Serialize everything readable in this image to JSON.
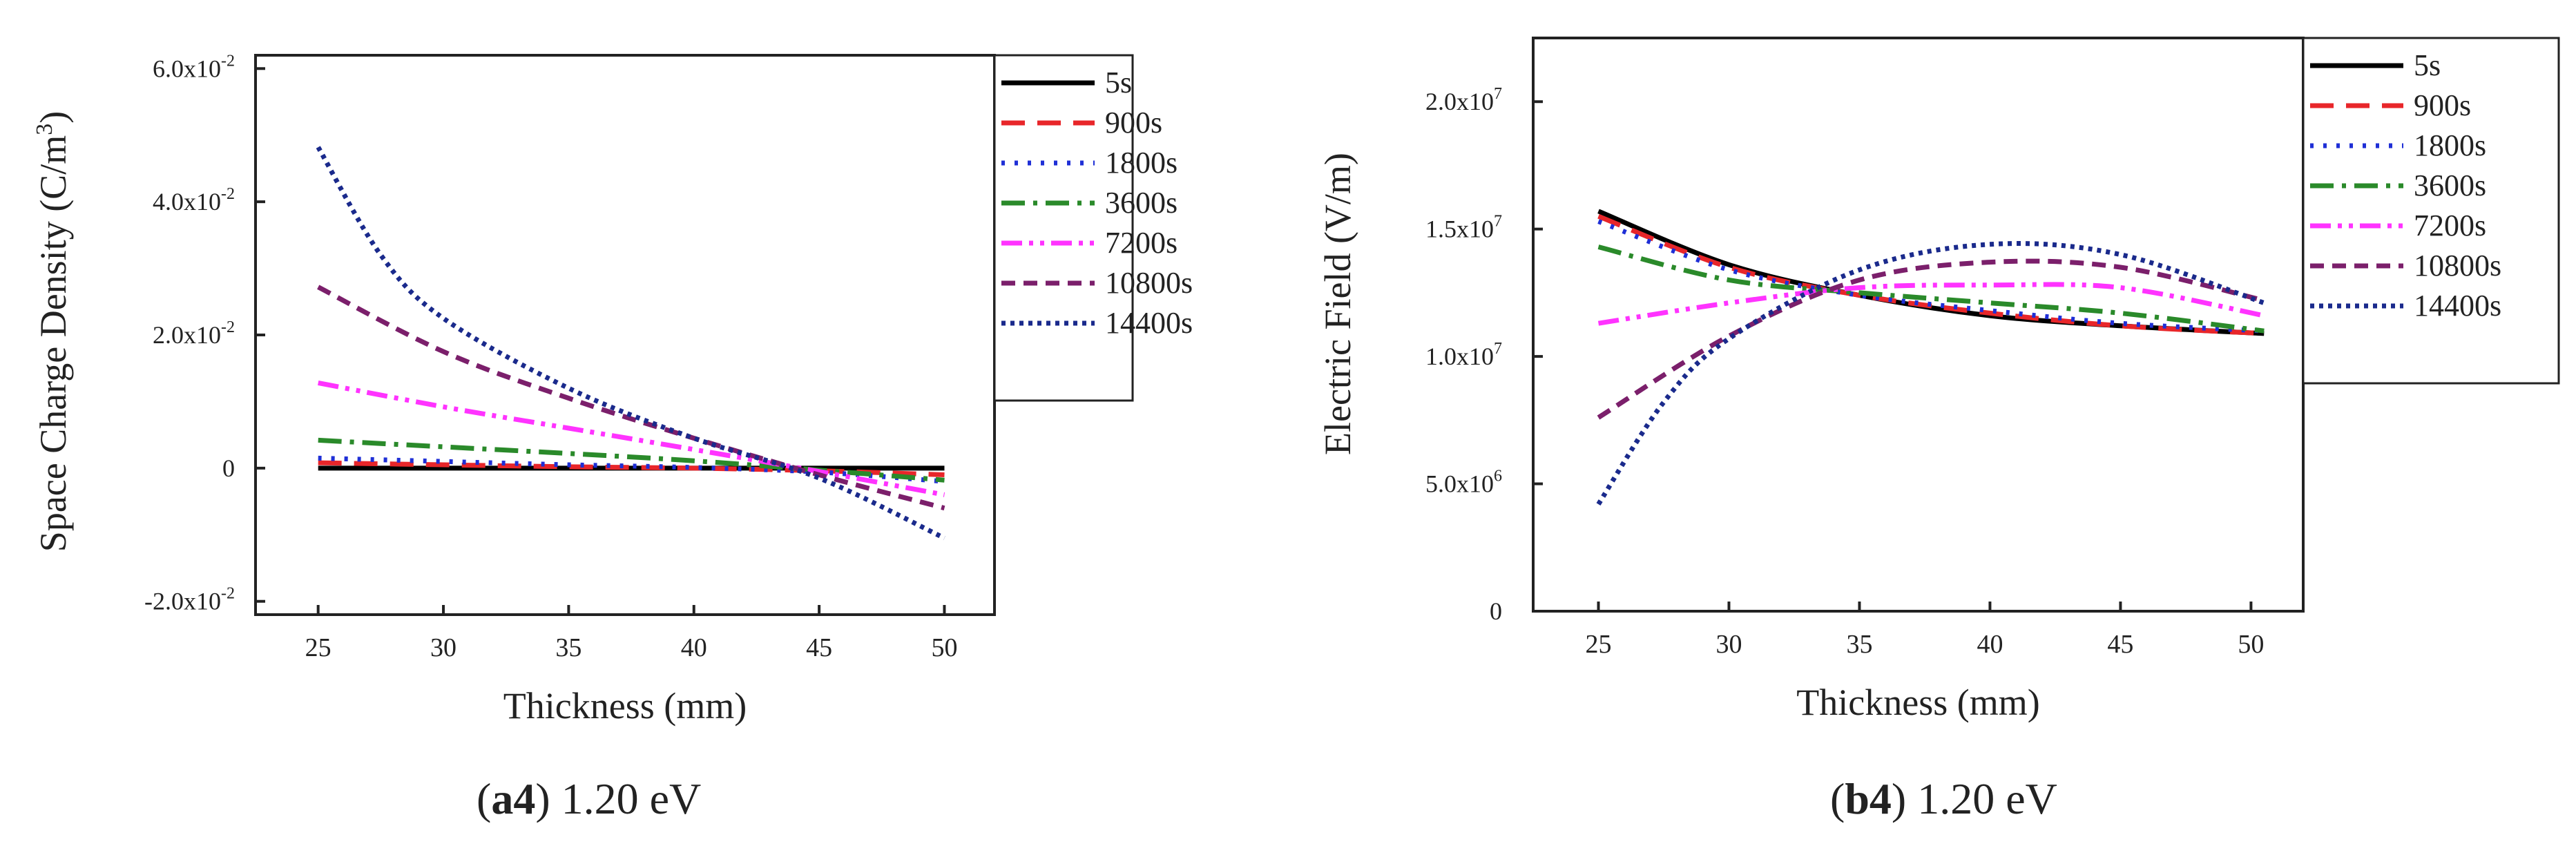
{
  "figure": {
    "captions": [
      {
        "label": "a4",
        "text": " 1.20 eV"
      },
      {
        "label": "b4",
        "text": " 1.20 eV"
      }
    ]
  },
  "colors": {
    "5s": "#000000",
    "900s": "#e8262a",
    "1800s": "#1f2fd6",
    "3600s": "#2a8a2a",
    "7200s": "#ff33ff",
    "10800s": "#7b1f6b",
    "14400s": "#1a2a8c"
  },
  "chart_data": [
    {
      "id": "a4",
      "type": "line",
      "title": "",
      "xlabel": "Thickness (mm)",
      "ylabel_main": "Space Charge Density (C/m",
      "ylabel_sup": "3",
      "ylabel_close": ")",
      "xlim": [
        22.5,
        52
      ],
      "ylim": [
        -0.022,
        0.062
      ],
      "xticks": [
        25,
        30,
        35,
        40,
        45,
        50
      ],
      "yticks": [
        {
          "value": 0.06,
          "base": "6.0x10",
          "exp": "-2"
        },
        {
          "value": 0.04,
          "base": "4.0x10",
          "exp": "-2"
        },
        {
          "value": 0.02,
          "base": "2.0x10",
          "exp": "-2"
        },
        {
          "value": 0.0,
          "base": "0",
          "exp": ""
        },
        {
          "value": -0.02,
          "base": "-2.0x10",
          "exp": "-2"
        }
      ],
      "legend_position": "top-right",
      "series": [
        {
          "name": "5s",
          "color_key": "5s",
          "dash": "solid",
          "x": [
            25,
            30,
            35,
            40,
            45,
            50
          ],
          "y": [
            0.0,
            0.0,
            0.0,
            0.0,
            0.0,
            0.0
          ]
        },
        {
          "name": "900s",
          "color_key": "900s",
          "dash": "dash",
          "x": [
            25,
            30,
            35,
            40,
            45,
            50
          ],
          "y": [
            0.0008,
            0.0005,
            0.0002,
            0.0,
            -0.0004,
            -0.001
          ]
        },
        {
          "name": "1800s",
          "color_key": "1800s",
          "dash": "dot",
          "x": [
            25,
            30,
            35,
            40,
            45,
            50
          ],
          "y": [
            0.0015,
            0.001,
            0.0005,
            0.0001,
            -0.0006,
            -0.002
          ]
        },
        {
          "name": "3600s",
          "color_key": "3600s",
          "dash": "dashdot",
          "x": [
            25,
            30,
            35,
            40,
            45,
            50
          ],
          "y": [
            0.0042,
            0.0032,
            0.0022,
            0.0011,
            -0.0003,
            -0.0018
          ]
        },
        {
          "name": "7200s",
          "color_key": "7200s",
          "dash": "dashdotdot",
          "x": [
            25,
            30,
            35,
            40,
            45,
            50
          ],
          "y": [
            0.0128,
            0.0092,
            0.006,
            0.0028,
            -0.0005,
            -0.004
          ]
        },
        {
          "name": "10800s",
          "color_key": "10800s",
          "dash": "shortdash",
          "x": [
            25,
            30,
            35,
            40,
            45,
            50
          ],
          "y": [
            0.0272,
            0.0175,
            0.0105,
            0.0045,
            -0.001,
            -0.006
          ]
        },
        {
          "name": "14400s",
          "color_key": "14400s",
          "dash": "shortdot",
          "x": [
            25,
            27.5,
            30,
            35,
            40,
            45,
            50
          ],
          "y": [
            0.0482,
            0.032,
            0.0225,
            0.012,
            0.0045,
            -0.0015,
            -0.0105
          ]
        }
      ]
    },
    {
      "id": "b4",
      "type": "line",
      "title": "",
      "xlabel": "Thickness (mm)",
      "ylabel_main": "Electric Field (V/m)",
      "ylabel_sup": "",
      "ylabel_close": "",
      "xlim": [
        22.5,
        52
      ],
      "ylim": [
        0,
        22500000
      ],
      "xticks": [
        25,
        30,
        35,
        40,
        45,
        50
      ],
      "yticks": [
        {
          "value": 20000000,
          "base": "2.0x10",
          "exp": "7"
        },
        {
          "value": 15000000,
          "base": "1.5x10",
          "exp": "7"
        },
        {
          "value": 10000000,
          "base": "1.0x10",
          "exp": "7"
        },
        {
          "value": 5000000,
          "base": "5.0x10",
          "exp": "6"
        },
        {
          "value": 0,
          "base": "0",
          "exp": ""
        }
      ],
      "legend_position": "top-right",
      "series": [
        {
          "name": "5s",
          "color_key": "5s",
          "dash": "solid",
          "x": [
            25,
            30,
            35,
            40,
            45,
            50.5
          ],
          "y": [
            15700000,
            13600000,
            12400000,
            11600000,
            11200000,
            10900000
          ]
        },
        {
          "name": "900s",
          "color_key": "900s",
          "dash": "dash",
          "x": [
            25,
            30,
            35,
            40,
            45,
            50.5
          ],
          "y": [
            15500000,
            13500000,
            12400000,
            11700000,
            11200000,
            10900000
          ]
        },
        {
          "name": "1800s",
          "color_key": "1800s",
          "dash": "dot",
          "x": [
            25,
            30,
            35,
            40,
            45,
            50.5
          ],
          "y": [
            15300000,
            13400000,
            12400000,
            11800000,
            11300000,
            11000000
          ]
        },
        {
          "name": "3600s",
          "color_key": "3600s",
          "dash": "dashdot",
          "x": [
            25,
            30,
            35,
            40,
            45,
            50.5
          ],
          "y": [
            14300000,
            13000000,
            12500000,
            12100000,
            11700000,
            11000000
          ]
        },
        {
          "name": "7200s",
          "color_key": "7200s",
          "dash": "dashdotdot",
          "x": [
            25,
            30,
            35,
            40,
            45,
            50.5
          ],
          "y": [
            11300000,
            12100000,
            12700000,
            12800000,
            12700000,
            11600000
          ]
        },
        {
          "name": "10800s",
          "color_key": "10800s",
          "dash": "shortdash",
          "x": [
            25,
            30,
            35,
            40,
            45,
            50.5
          ],
          "y": [
            7600000,
            10800000,
            13000000,
            13700000,
            13500000,
            12200000
          ]
        },
        {
          "name": "14400s",
          "color_key": "14400s",
          "dash": "shortdot",
          "x": [
            25,
            27.5,
            30,
            35,
            40,
            45,
            50.5
          ],
          "y": [
            4200000,
            8200000,
            10700000,
            13400000,
            14400000,
            14000000,
            12100000
          ]
        }
      ]
    }
  ]
}
